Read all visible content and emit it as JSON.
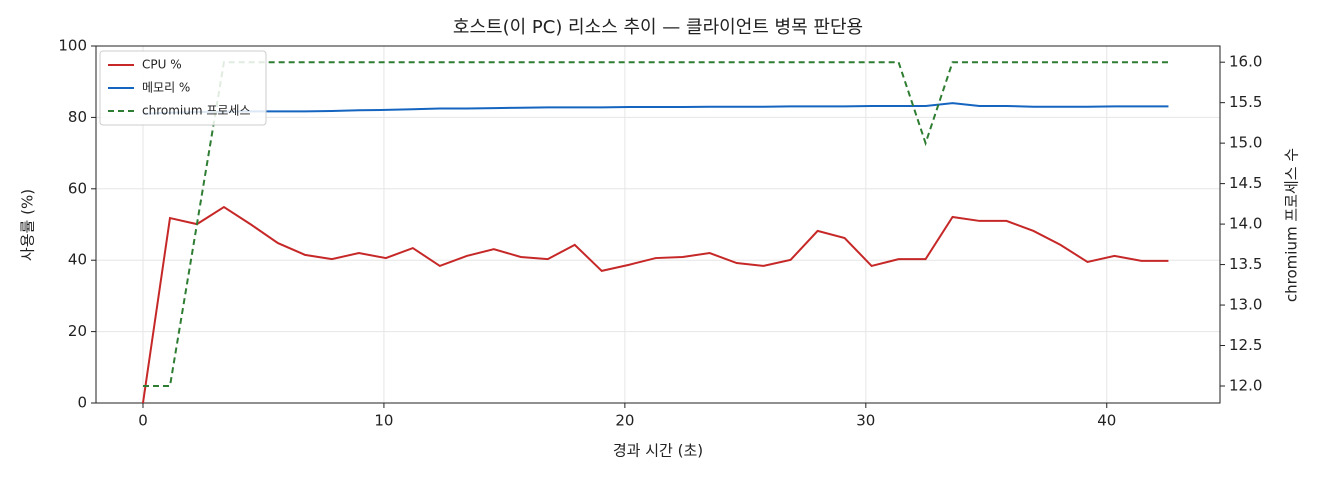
{
  "chart_data": {
    "type": "line",
    "title": "호스트(이 PC) 리소스 추이 — 클라이언트 병목 판단용",
    "xlabel": "경과 시간 (초)",
    "ylabel": "사용률 (%)",
    "y2label": "chromium 프로세스 수",
    "x": [
      0,
      1.12,
      2.24,
      3.36,
      4.48,
      5.6,
      6.72,
      7.84,
      8.96,
      10.08,
      11.2,
      12.32,
      13.44,
      14.56,
      15.68,
      16.8,
      17.92,
      19.04,
      20.16,
      21.28,
      22.4,
      23.52,
      24.64,
      25.76,
      26.88,
      28.0,
      29.12,
      30.24,
      31.36,
      32.48,
      33.6,
      34.72,
      35.84,
      36.96,
      38.08,
      39.2,
      40.32,
      41.44,
      42.56
    ],
    "series": [
      {
        "name": "CPU %",
        "color": "#c62828",
        "dash": false,
        "values": [
          0,
          51.8,
          50.1,
          54.9,
          50.0,
          44.8,
          41.5,
          40.3,
          42.0,
          40.6,
          43.4,
          38.4,
          41.2,
          43.1,
          40.9,
          40.3,
          44.3,
          37.0,
          38.7,
          40.6,
          40.9,
          42.0,
          39.2,
          38.4,
          40.1,
          48.2,
          46.2,
          38.4,
          40.3,
          40.3,
          52.1,
          51.0,
          51.0,
          48.2,
          44.3,
          39.5,
          41.2,
          39.8,
          39.8
        ]
      },
      {
        "name": "메모리 %",
        "color": "#1565c0",
        "dash": false,
        "values": [
          81.0,
          81.3,
          81.5,
          81.6,
          81.7,
          81.7,
          81.7,
          81.8,
          82.0,
          82.1,
          82.3,
          82.5,
          82.5,
          82.6,
          82.7,
          82.8,
          82.8,
          82.8,
          82.9,
          82.9,
          82.9,
          83.0,
          83.0,
          83.0,
          83.1,
          83.1,
          83.1,
          83.2,
          83.2,
          83.2,
          84.0,
          83.2,
          83.2,
          83.0,
          83.0,
          83.0,
          83.1,
          83.1,
          83.1
        ]
      },
      {
        "name": "chromium 프로세스",
        "color": "#2e7d32",
        "dash": true,
        "axis": "y2",
        "values": [
          12,
          12,
          14,
          16,
          16,
          16,
          16,
          16,
          16,
          16,
          16,
          16,
          16,
          16,
          16,
          16,
          16,
          16,
          16,
          16,
          16,
          16,
          16,
          16,
          16,
          16,
          16,
          16,
          16,
          15,
          16,
          16,
          16,
          16,
          16,
          16,
          16,
          16,
          16
        ]
      }
    ],
    "xlim": [
      -1.95,
      44.7
    ],
    "xticks": [
      0,
      10,
      20,
      30,
      40
    ],
    "ylim": [
      0,
      100
    ],
    "yticks": [
      0,
      20,
      40,
      60,
      80,
      100
    ],
    "y2lim": [
      11.79,
      16.2
    ],
    "y2ticks": [
      {
        "value": 12,
        "label": "12.0"
      },
      12.5,
      {
        "value": 13,
        "label": "13.0"
      },
      13.5,
      {
        "value": 14,
        "label": "14.0"
      },
      14.5,
      {
        "value": 15,
        "label": "15.0"
      },
      15.5,
      {
        "value": 16,
        "label": "16.0"
      }
    ],
    "grid": true,
    "legend": "upper left"
  }
}
